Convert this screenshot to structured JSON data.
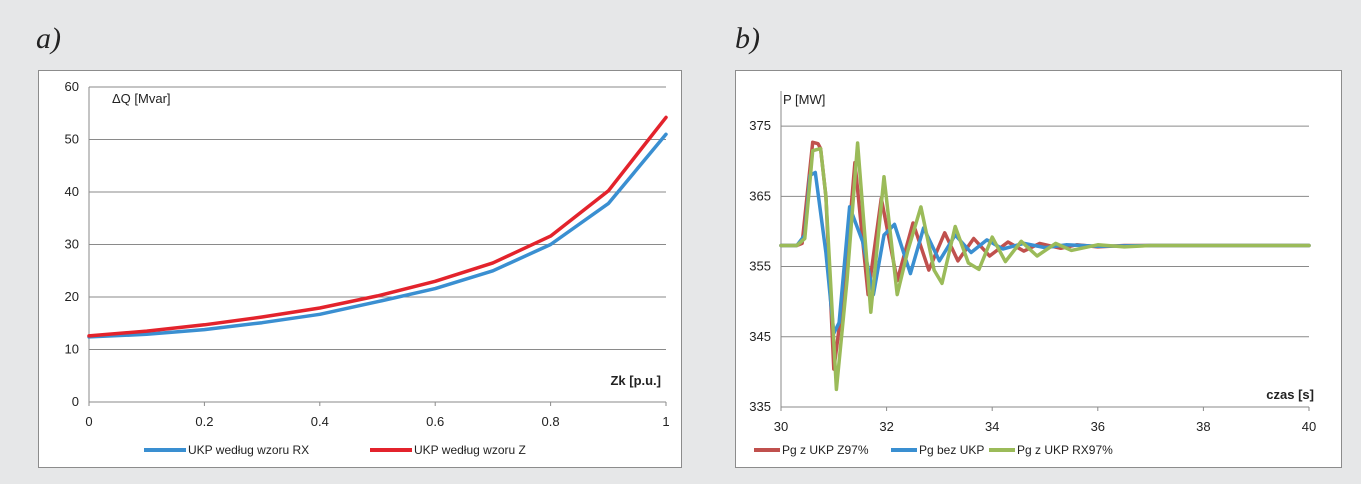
{
  "panels": {
    "a": "a)",
    "b": "b)"
  },
  "chart_data": [
    {
      "type": "line",
      "ylabel": "ΔQ [Mvar]",
      "xlabel": "Zk [p.u.]",
      "xlim": [
        0,
        1
      ],
      "ylim": [
        0,
        60
      ],
      "xticks": [
        "0",
        "0.2",
        "0.4",
        "0.6",
        "0.8",
        "1"
      ],
      "yticks": [
        "0",
        "10",
        "20",
        "30",
        "40",
        "50",
        "60"
      ],
      "grid": "horizontal",
      "legend": "bottom",
      "x": [
        0,
        0.1,
        0.2,
        0.3,
        0.4,
        0.5,
        0.6,
        0.7,
        0.8,
        0.9,
        1.0
      ],
      "series": [
        {
          "name": "UKP według  wzoru RX",
          "color": "#3a8fd1",
          "values": [
            12.4,
            12.9,
            13.8,
            15.1,
            16.7,
            19.1,
            21.6,
            25.0,
            30.0,
            37.8,
            51.0
          ]
        },
        {
          "name": "UKP według  wzoru Z",
          "color": "#e3232c",
          "values": [
            12.6,
            13.5,
            14.7,
            16.2,
            17.9,
            20.2,
            23.0,
            26.5,
            31.6,
            40.2,
            54.2
          ]
        }
      ]
    },
    {
      "type": "line",
      "ylabel": "P [MW]",
      "xlabel": "czas [s]",
      "xlim": [
        30,
        40
      ],
      "ylim": [
        335,
        380
      ],
      "xticks": [
        "30",
        "32",
        "34",
        "36",
        "38",
        "40"
      ],
      "yticks": [
        "335",
        "345",
        "355",
        "365",
        "375"
      ],
      "grid": "horizontal",
      "legend": "bottom",
      "series": [
        {
          "name": "Pg z UKP  Z97%",
          "color": "#c0504d",
          "x": [
            30,
            30.3,
            30.4,
            30.6,
            30.7,
            30.75,
            30.85,
            31.0,
            31.2,
            31.4,
            31.65,
            31.9,
            32.2,
            32.5,
            32.8,
            33.1,
            33.35,
            33.65,
            33.95,
            34.3,
            34.6,
            34.9,
            35.3,
            35.6,
            36.0,
            36.5,
            37.0,
            38.0,
            39.0,
            40.0
          ],
          "values": [
            358,
            358,
            358.3,
            372.7,
            372.5,
            371.8,
            365,
            340.4,
            352,
            369.8,
            351,
            364.7,
            353,
            361.2,
            354.5,
            359.8,
            355.8,
            359,
            356.5,
            358.5,
            357.2,
            358.3,
            357.6,
            358.1,
            357.8,
            358,
            358,
            358,
            358,
            358
          ]
        },
        {
          "name": "Pg bez UKP",
          "color": "#3a8fd1",
          "x": [
            30,
            30.3,
            30.45,
            30.55,
            30.65,
            30.85,
            31.0,
            31.1,
            31.3,
            31.55,
            31.75,
            31.95,
            32.15,
            32.45,
            32.7,
            33.0,
            33.3,
            33.6,
            33.9,
            34.2,
            34.6,
            35.0,
            35.4,
            36.0,
            37.0,
            38.0,
            40.0
          ],
          "values": [
            358,
            358,
            359.5,
            368,
            368.4,
            357,
            345.5,
            347,
            363.5,
            358.5,
            351,
            359.5,
            361,
            354,
            360.5,
            355.8,
            359.5,
            357,
            358.8,
            357.5,
            358.3,
            357.7,
            358.1,
            357.9,
            358,
            358,
            358
          ]
        },
        {
          "name": "Pg z UKP  RX97%",
          "color": "#9bbb59",
          "x": [
            30,
            30.3,
            30.45,
            30.6,
            30.75,
            30.85,
            31.05,
            31.25,
            31.45,
            31.7,
            31.95,
            32.2,
            32.4,
            32.65,
            32.9,
            33.05,
            33.3,
            33.55,
            33.75,
            34.0,
            34.25,
            34.55,
            34.85,
            35.2,
            35.5,
            36.0,
            36.5,
            37.0,
            38.0,
            40.0
          ],
          "values": [
            358,
            358,
            359,
            371.5,
            371.8,
            365,
            337.5,
            353,
            372.6,
            348.5,
            367.8,
            351,
            357.2,
            363.5,
            354.5,
            352.6,
            360.7,
            355.5,
            354.6,
            359.2,
            355.7,
            358.6,
            356.5,
            358.3,
            357.3,
            358.1,
            357.8,
            358,
            358,
            358
          ]
        }
      ]
    }
  ]
}
